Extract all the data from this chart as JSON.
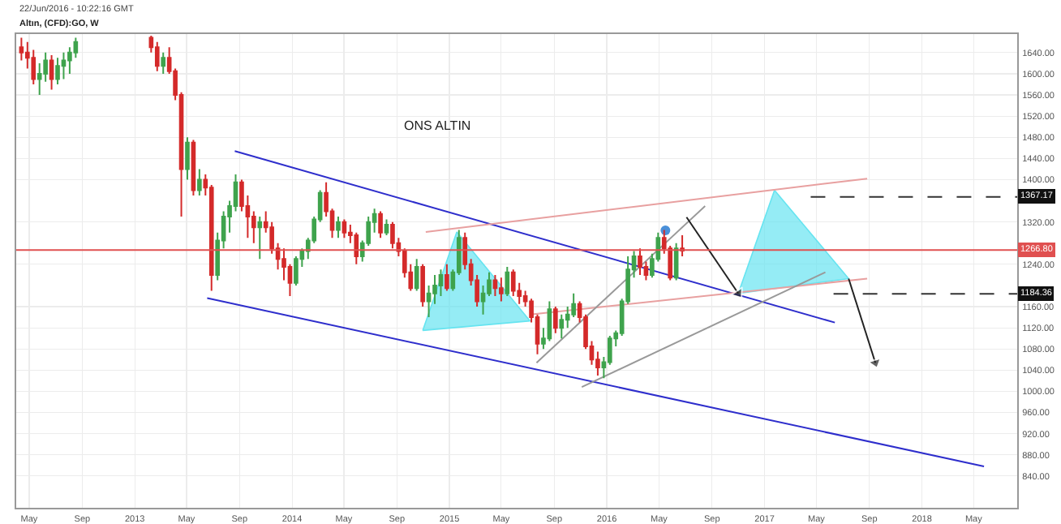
{
  "chart_data": {
    "type": "candlestick",
    "title": "22/Jun/2016 - 10:22:16 GMT",
    "subtitle": "Altın, (CFD):GO, W",
    "x": [
      "2012-04-13",
      "2012-04-27",
      "2012-05-11",
      "2012-05-25",
      "2012-06-08",
      "2012-06-22",
      "2012-07-06",
      "2012-07-20",
      "2012-08-03",
      "2012-08-17",
      "2013-02-08",
      "2013-02-22",
      "2013-03-08",
      "2013-03-22",
      "2013-04-05",
      "2013-04-19",
      "2013-05-03",
      "2013-05-17",
      "2013-05-31",
      "2013-06-14",
      "2013-06-28",
      "2013-07-12",
      "2013-07-26",
      "2013-08-09",
      "2013-08-23",
      "2013-09-06",
      "2013-09-20",
      "2013-10-04",
      "2013-10-18",
      "2013-11-01",
      "2013-11-15",
      "2013-11-29",
      "2013-12-13",
      "2013-12-27",
      "2014-01-10",
      "2014-01-24",
      "2014-02-07",
      "2014-02-21",
      "2014-03-07",
      "2014-03-21",
      "2014-04-04",
      "2014-04-18",
      "2014-05-02",
      "2014-05-16",
      "2014-05-30",
      "2014-06-13",
      "2014-06-27",
      "2014-07-11",
      "2014-07-25",
      "2014-08-08",
      "2014-08-22",
      "2014-09-05",
      "2014-09-19",
      "2014-10-03",
      "2014-10-17",
      "2014-10-31",
      "2014-11-14",
      "2014-11-28",
      "2014-12-12",
      "2014-12-26",
      "2015-01-09",
      "2015-01-23",
      "2015-02-06",
      "2015-02-20",
      "2015-03-06",
      "2015-03-20",
      "2015-04-03",
      "2015-04-17",
      "2015-05-01",
      "2015-05-15",
      "2015-05-29",
      "2015-06-12",
      "2015-06-26",
      "2015-07-10",
      "2015-07-24",
      "2015-08-07",
      "2015-08-21",
      "2015-09-04",
      "2015-09-18",
      "2015-10-02",
      "2015-10-16",
      "2015-10-30",
      "2015-11-13",
      "2015-11-27",
      "2015-12-11",
      "2015-12-25",
      "2016-01-08",
      "2016-01-22",
      "2016-02-05",
      "2016-02-19",
      "2016-03-04",
      "2016-03-18",
      "2016-04-01",
      "2016-04-15",
      "2016-04-29",
      "2016-05-13",
      "2016-05-27",
      "2016-06-10",
      "2016-06-24"
    ],
    "ohlc": [
      [
        1650,
        1668,
        1625,
        1640
      ],
      [
        1640,
        1660,
        1610,
        1630
      ],
      [
        1630,
        1645,
        1580,
        1590
      ],
      [
        1590,
        1620,
        1560,
        1600
      ],
      [
        1600,
        1640,
        1585,
        1625
      ],
      [
        1625,
        1635,
        1570,
        1590
      ],
      [
        1590,
        1630,
        1580,
        1615
      ],
      [
        1615,
        1640,
        1590,
        1625
      ],
      [
        1625,
        1650,
        1600,
        1640
      ],
      [
        1640,
        1668,
        1630,
        1660
      ],
      [
        1668,
        1672,
        1640,
        1650
      ],
      [
        1650,
        1660,
        1605,
        1615
      ],
      [
        1615,
        1640,
        1600,
        1630
      ],
      [
        1630,
        1650,
        1600,
        1605
      ],
      [
        1605,
        1610,
        1550,
        1560
      ],
      [
        1560,
        1565,
        1330,
        1420
      ],
      [
        1420,
        1480,
        1400,
        1470
      ],
      [
        1470,
        1475,
        1370,
        1380
      ],
      [
        1380,
        1420,
        1370,
        1400
      ],
      [
        1400,
        1410,
        1370,
        1385
      ],
      [
        1385,
        1390,
        1190,
        1220
      ],
      [
        1220,
        1300,
        1210,
        1285
      ],
      [
        1285,
        1340,
        1270,
        1330
      ],
      [
        1330,
        1360,
        1300,
        1350
      ],
      [
        1350,
        1410,
        1340,
        1395
      ],
      [
        1395,
        1400,
        1340,
        1350
      ],
      [
        1350,
        1370,
        1290,
        1330
      ],
      [
        1330,
        1340,
        1280,
        1310
      ],
      [
        1310,
        1330,
        1250,
        1320
      ],
      [
        1320,
        1340,
        1300,
        1310
      ],
      [
        1310,
        1320,
        1260,
        1270
      ],
      [
        1270,
        1280,
        1230,
        1250
      ],
      [
        1250,
        1270,
        1210,
        1235
      ],
      [
        1235,
        1240,
        1180,
        1205
      ],
      [
        1205,
        1255,
        1200,
        1250
      ],
      [
        1250,
        1270,
        1235,
        1265
      ],
      [
        1265,
        1290,
        1250,
        1285
      ],
      [
        1285,
        1330,
        1280,
        1325
      ],
      [
        1325,
        1380,
        1320,
        1375
      ],
      [
        1375,
        1395,
        1330,
        1340
      ],
      [
        1340,
        1345,
        1290,
        1305
      ],
      [
        1305,
        1330,
        1290,
        1320
      ],
      [
        1320,
        1325,
        1290,
        1300
      ],
      [
        1300,
        1315,
        1280,
        1295
      ],
      [
        1295,
        1300,
        1240,
        1255
      ],
      [
        1255,
        1285,
        1245,
        1280
      ],
      [
        1280,
        1330,
        1275,
        1320
      ],
      [
        1320,
        1345,
        1300,
        1335
      ],
      [
        1335,
        1340,
        1290,
        1300
      ],
      [
        1300,
        1325,
        1295,
        1315
      ],
      [
        1315,
        1320,
        1270,
        1280
      ],
      [
        1280,
        1290,
        1255,
        1265
      ],
      [
        1265,
        1270,
        1215,
        1225
      ],
      [
        1225,
        1240,
        1190,
        1195
      ],
      [
        1195,
        1250,
        1190,
        1235
      ],
      [
        1235,
        1240,
        1160,
        1170
      ],
      [
        1170,
        1200,
        1140,
        1185
      ],
      [
        1185,
        1220,
        1165,
        1200
      ],
      [
        1200,
        1230,
        1180,
        1220
      ],
      [
        1220,
        1240,
        1190,
        1195
      ],
      [
        1195,
        1230,
        1190,
        1225
      ],
      [
        1225,
        1305,
        1220,
        1290
      ],
      [
        1290,
        1300,
        1230,
        1240
      ],
      [
        1240,
        1250,
        1200,
        1210
      ],
      [
        1210,
        1220,
        1160,
        1170
      ],
      [
        1170,
        1200,
        1145,
        1185
      ],
      [
        1185,
        1225,
        1180,
        1210
      ],
      [
        1210,
        1220,
        1180,
        1195
      ],
      [
        1195,
        1215,
        1170,
        1185
      ],
      [
        1185,
        1235,
        1180,
        1225
      ],
      [
        1225,
        1230,
        1180,
        1190
      ],
      [
        1190,
        1205,
        1165,
        1180
      ],
      [
        1180,
        1190,
        1160,
        1170
      ],
      [
        1170,
        1175,
        1130,
        1140
      ],
      [
        1140,
        1145,
        1070,
        1090
      ],
      [
        1090,
        1120,
        1080,
        1100
      ],
      [
        1100,
        1170,
        1095,
        1155
      ],
      [
        1155,
        1160,
        1110,
        1120
      ],
      [
        1120,
        1145,
        1100,
        1135
      ],
      [
        1135,
        1160,
        1120,
        1145
      ],
      [
        1145,
        1185,
        1140,
        1165
      ],
      [
        1165,
        1170,
        1130,
        1140
      ],
      [
        1140,
        1145,
        1080,
        1085
      ],
      [
        1085,
        1095,
        1050,
        1060
      ],
      [
        1060,
        1075,
        1030,
        1045
      ],
      [
        1045,
        1065,
        1025,
        1055
      ],
      [
        1055,
        1105,
        1050,
        1100
      ],
      [
        1100,
        1115,
        1085,
        1110
      ],
      [
        1110,
        1175,
        1105,
        1170
      ],
      [
        1170,
        1255,
        1165,
        1230
      ],
      [
        1230,
        1265,
        1215,
        1255
      ],
      [
        1255,
        1270,
        1220,
        1235
      ],
      [
        1235,
        1245,
        1210,
        1220
      ],
      [
        1220,
        1260,
        1215,
        1250
      ],
      [
        1250,
        1300,
        1245,
        1290
      ],
      [
        1290,
        1305,
        1260,
        1270
      ],
      [
        1270,
        1275,
        1210,
        1215
      ],
      [
        1215,
        1280,
        1210,
        1270
      ],
      [
        1270,
        1295,
        1255,
        1266
      ]
    ],
    "colors": [
      "#d42a2a",
      "#d42a2a",
      "#d42a2a",
      "#3fa34d",
      "#3fa34d",
      "#d42a2a",
      "#3fa34d",
      "#3fa34d",
      "#3fa34d",
      "#3fa34d",
      "#d42a2a",
      "#d42a2a",
      "#3fa34d",
      "#d42a2a",
      "#d42a2a",
      "#d42a2a",
      "#3fa34d",
      "#d42a2a",
      "#3fa34d",
      "#d42a2a",
      "#d42a2a",
      "#3fa34d",
      "#3fa34d",
      "#3fa34d",
      "#3fa34d",
      "#d42a2a",
      "#d42a2a",
      "#d42a2a",
      "#3fa34d",
      "#d42a2a",
      "#d42a2a",
      "#d42a2a",
      "#d42a2a",
      "#d42a2a",
      "#3fa34d",
      "#3fa34d",
      "#3fa34d",
      "#3fa34d",
      "#3fa34d",
      "#d42a2a",
      "#d42a2a",
      "#3fa34d",
      "#d42a2a",
      "#d42a2a",
      "#d42a2a",
      "#3fa34d",
      "#3fa34d",
      "#3fa34d",
      "#d42a2a",
      "#3fa34d",
      "#d42a2a",
      "#d42a2a",
      "#d42a2a",
      "#d42a2a",
      "#3fa34d",
      "#d42a2a",
      "#3fa34d",
      "#3fa34d",
      "#3fa34d",
      "#d42a2a",
      "#3fa34d",
      "#3fa34d",
      "#d42a2a",
      "#d42a2a",
      "#d42a2a",
      "#3fa34d",
      "#3fa34d",
      "#d42a2a",
      "#d42a2a",
      "#3fa34d",
      "#d42a2a",
      "#d42a2a",
      "#d42a2a",
      "#d42a2a",
      "#d42a2a",
      "#3fa34d",
      "#3fa34d",
      "#d42a2a",
      "#3fa34d",
      "#3fa34d",
      "#3fa34d",
      "#d42a2a",
      "#d42a2a",
      "#d42a2a",
      "#d42a2a",
      "#3fa34d",
      "#3fa34d",
      "#3fa34d",
      "#3fa34d",
      "#3fa34d",
      "#3fa34d",
      "#d42a2a",
      "#d42a2a",
      "#3fa34d",
      "#3fa34d",
      "#d42a2a",
      "#d42a2a",
      "#3fa34d",
      "#d42a2a"
    ],
    "series": [
      {
        "type": "line",
        "color": "#2e2ecc",
        "x": [
          "2013-08-21",
          "2017-06-13"
        ],
        "values": [
          1454,
          1130
        ]
      },
      {
        "type": "line",
        "color": "#2e2ecc",
        "x": [
          "2013-06-18",
          "2018-05-25"
        ],
        "values": [
          1176,
          858
        ]
      },
      {
        "type": "line",
        "color": "#e8a0a0",
        "x": [
          "2014-11-07",
          "2017-08-27"
        ],
        "values": [
          1301,
          1402
        ]
      },
      {
        "type": "line",
        "color": "#e8a0a0",
        "x": [
          "2015-07-07",
          "2017-08-27"
        ],
        "values": [
          1145,
          1213
        ]
      },
      {
        "type": "line",
        "color": "#999999",
        "x": [
          "2015-07-22",
          "2016-08-16"
        ],
        "values": [
          1054,
          1350
        ]
      },
      {
        "type": "line",
        "color": "#999999",
        "x": [
          "2015-11-04",
          "2017-05-22"
        ],
        "values": [
          1008,
          1225
        ]
      },
      {
        "type": "area",
        "color": "#66e4f0",
        "x": [
          "2014-10-31",
          "2015-01-18",
          "2015-07-07",
          "2014-10-31"
        ],
        "values": [
          1115,
          1301,
          1133,
          1115
        ]
      },
      {
        "type": "area",
        "color": "#66e4f0",
        "x": [
          "2016-11-01",
          "2017-01-24",
          "2017-07-15",
          "2016-11-01"
        ],
        "values": [
          1185,
          1380,
          1213,
          1185
        ]
      },
      {
        "type": "line",
        "color": "#222222",
        "marker": "triangle",
        "x": [
          "2016-07-04",
          "2016-11-01"
        ],
        "values": [
          1329,
          1185
        ]
      },
      {
        "type": "line",
        "color": "#222222",
        "marker": "triangle",
        "x": [
          "2017-07-15",
          "2017-09-15"
        ],
        "values": [
          1213,
          1054
        ]
      },
      {
        "type": "line",
        "color": "#333333",
        "line_style": "dashed",
        "x": [
          "2017-04-18",
          "2018-08-10"
        ],
        "values": [
          1367.17,
          1367.17
        ]
      },
      {
        "type": "line",
        "color": "#333333",
        "line_style": "dashed",
        "x": [
          "2017-06-10",
          "2018-08-10"
        ],
        "values": [
          1184.36,
          1184.36
        ]
      },
      {
        "type": "scatter",
        "color": "#4a90d9",
        "marker": "circle",
        "x": [
          "2016-05-16"
        ],
        "values": [
          1304
        ]
      }
    ],
    "ref_lines": [
      {
        "axis": "y",
        "value": 1266.8,
        "label": "1266.80",
        "color": "#e05050"
      }
    ],
    "annotations": [
      "ONS ALTIN",
      {
        "text": "1367.17",
        "x": "2018-08-10",
        "y": 1367.17
      },
      {
        "text": "1184.36",
        "x": "2018-08-10",
        "y": 1184.36
      }
    ],
    "xlim": [
      "2012-04-01",
      "2018-08-10"
    ],
    "xticks": [
      {
        "value": "2012-05-01",
        "label": "May"
      },
      {
        "value": "2012-09-01",
        "label": "Sep"
      },
      {
        "value": "2013-01-01",
        "label": "2013"
      },
      {
        "value": "2013-05-01",
        "label": "May"
      },
      {
        "value": "2013-09-01",
        "label": "Sep"
      },
      {
        "value": "2014-01-01",
        "label": "2014"
      },
      {
        "value": "2014-05-01",
        "label": "May"
      },
      {
        "value": "2014-09-01",
        "label": "Sep"
      },
      {
        "value": "2015-01-01",
        "label": "2015"
      },
      {
        "value": "2015-05-01",
        "label": "May"
      },
      {
        "value": "2015-09-01",
        "label": "Sep"
      },
      {
        "value": "2016-01-01",
        "label": "2016"
      },
      {
        "value": "2016-05-01",
        "label": "May"
      },
      {
        "value": "2016-09-01",
        "label": "Sep"
      },
      {
        "value": "2017-01-01",
        "label": "2017"
      },
      {
        "value": "2017-05-01",
        "label": "May"
      },
      {
        "value": "2017-09-01",
        "label": "Sep"
      },
      {
        "value": "2018-01-01",
        "label": "2018"
      },
      {
        "value": "2018-05-01",
        "label": "May"
      }
    ],
    "ylim": [
      780,
      1675
    ],
    "yticks": [
      {
        "value": 840,
        "label": "840.00"
      },
      {
        "value": 880,
        "label": "880.00"
      },
      {
        "value": 920,
        "label": "920.00"
      },
      {
        "value": 960,
        "label": "960.00"
      },
      {
        "value": 1000,
        "label": "1000.00"
      },
      {
        "value": 1040,
        "label": "1040.00"
      },
      {
        "value": 1080,
        "label": "1080.00"
      },
      {
        "value": 1120,
        "label": "1120.00"
      },
      {
        "value": 1160,
        "label": "1160.00"
      },
      {
        "value": 1240,
        "label": "1240.00"
      },
      {
        "value": 1320,
        "label": "1320.00"
      },
      {
        "value": 1400,
        "label": "1400.00"
      },
      {
        "value": 1440,
        "label": "1440.00"
      },
      {
        "value": 1480,
        "label": "1480.00"
      },
      {
        "value": 1520,
        "label": "1520.00"
      },
      {
        "value": 1560,
        "label": "1560.00"
      },
      {
        "value": 1600,
        "label": "1600.00"
      },
      {
        "value": 1640,
        "label": "1640.00"
      }
    ],
    "grid": true
  }
}
